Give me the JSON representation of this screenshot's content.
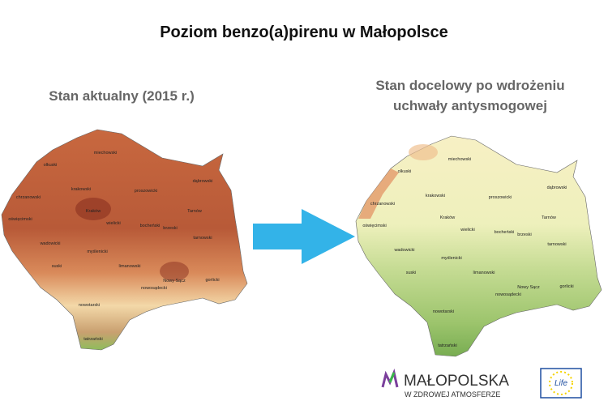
{
  "header": {
    "title": "Poziom benzo(a)pirenu w Małopolsce"
  },
  "maps": [
    {
      "subtitle": [
        "Stan aktualny (2015 r.)"
      ]
    },
    {
      "subtitle": [
        "Stan docelowy po wdrożeniu",
        "uchwały antysmogowej"
      ]
    }
  ],
  "districts": [
    "miechowski",
    "olkuski",
    "krakowski",
    "proszowicki",
    "dąbrowski",
    "chrzanowski",
    "Kraków",
    "Tarnów",
    "wielicki",
    "bocheński",
    "oświęcimski",
    "brzeski",
    "tarnowski",
    "wadowicki",
    "myślenicki",
    "suski",
    "limanowski",
    "Nowy Sącz",
    "gorlicki",
    "nowosądecki",
    "nowotarski",
    "tatrzański"
  ],
  "logos": {
    "malopolska": "MAŁOPOLSKA",
    "tagline": "W ZDROWEJ ATMOSFERZE",
    "life": "Life"
  }
}
